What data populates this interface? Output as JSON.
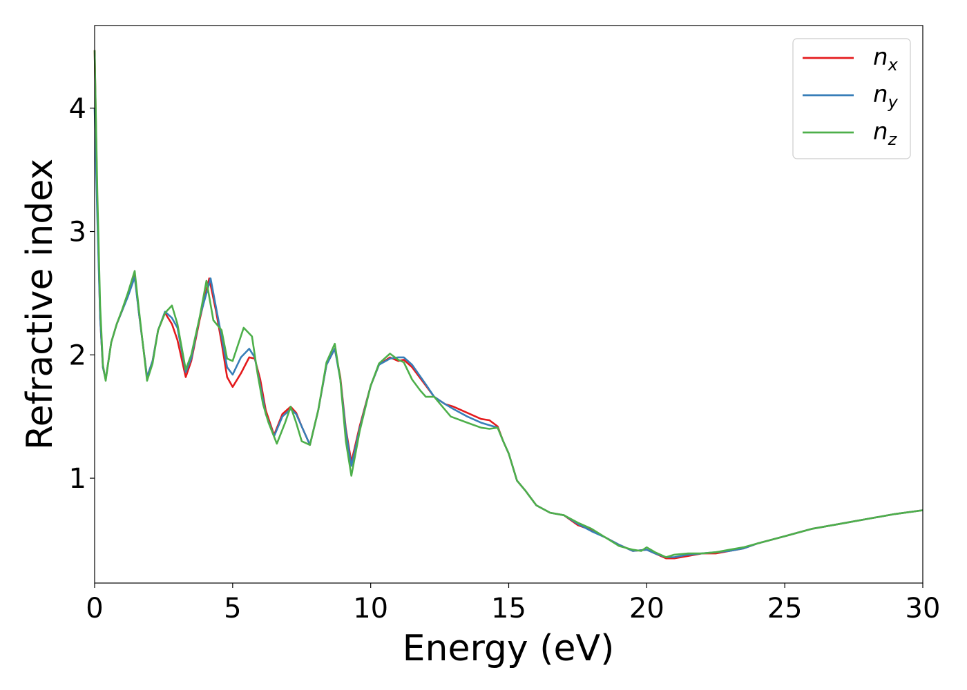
{
  "chart_data": {
    "type": "line",
    "xlabel": "Energy (eV)",
    "ylabel": "Refractive index",
    "xlim": [
      0,
      30
    ],
    "ylim": [
      0.15,
      4.67
    ],
    "xticks": [
      0,
      5,
      10,
      15,
      20,
      25,
      30
    ],
    "xtick_labels": [
      "0",
      "5",
      "10",
      "15",
      "20",
      "25",
      "30"
    ],
    "yticks": [
      1,
      2,
      3,
      4
    ],
    "ytick_labels": [
      "1",
      "2",
      "3",
      "4"
    ],
    "grid": false,
    "legend_position": "top-right",
    "series": [
      {
        "name": "n_x",
        "label_main": "n",
        "label_sub": "x",
        "color": "#e41a1c",
        "x": [
          0,
          0.1,
          0.2,
          0.3,
          0.4,
          0.6,
          0.8,
          1.0,
          1.2,
          1.45,
          1.6,
          1.9,
          2.1,
          2.3,
          2.55,
          2.8,
          3.0,
          3.3,
          3.5,
          3.8,
          4.15,
          4.4,
          4.6,
          4.8,
          5.0,
          5.3,
          5.6,
          5.8,
          6.0,
          6.2,
          6.5,
          6.8,
          7.1,
          7.3,
          7.5,
          7.8,
          8.1,
          8.4,
          8.7,
          8.9,
          9.1,
          9.3,
          9.6,
          10.0,
          10.3,
          10.7,
          11.0,
          11.2,
          11.5,
          12.0,
          12.3,
          12.7,
          13.0,
          13.5,
          14.0,
          14.3,
          14.6,
          14.8,
          15.0,
          15.3,
          15.6,
          16.0,
          16.5,
          17.0,
          17.5,
          18.0,
          18.5,
          19.0,
          19.5,
          20.0,
          20.3,
          20.7,
          21.0,
          21.5,
          22.0,
          22.5,
          23.0,
          23.5,
          24.0,
          25.0,
          26.0,
          27.0,
          28.0,
          29.0,
          30.0
        ],
        "y": [
          4.47,
          3.2,
          2.3,
          1.9,
          1.8,
          2.1,
          2.25,
          2.36,
          2.48,
          2.65,
          2.35,
          1.82,
          1.95,
          2.2,
          2.34,
          2.25,
          2.12,
          1.82,
          1.95,
          2.28,
          2.62,
          2.35,
          2.1,
          1.82,
          1.74,
          1.85,
          1.98,
          1.97,
          1.8,
          1.55,
          1.35,
          1.52,
          1.58,
          1.53,
          1.42,
          1.27,
          1.55,
          1.92,
          2.05,
          1.82,
          1.4,
          1.13,
          1.42,
          1.75,
          1.92,
          1.98,
          1.95,
          1.96,
          1.9,
          1.75,
          1.66,
          1.6,
          1.58,
          1.53,
          1.48,
          1.47,
          1.42,
          1.3,
          1.2,
          0.98,
          0.9,
          0.78,
          0.72,
          0.7,
          0.62,
          0.58,
          0.52,
          0.46,
          0.41,
          0.42,
          0.39,
          0.35,
          0.35,
          0.37,
          0.39,
          0.39,
          0.41,
          0.43,
          0.47,
          0.53,
          0.59,
          0.63,
          0.67,
          0.71,
          0.74
        ]
      },
      {
        "name": "n_y",
        "label_main": "n",
        "label_sub": "y",
        "color": "#377eb8",
        "x": [
          0,
          0.1,
          0.2,
          0.3,
          0.4,
          0.6,
          0.8,
          1.0,
          1.2,
          1.45,
          1.6,
          1.9,
          2.1,
          2.3,
          2.55,
          2.8,
          3.0,
          3.3,
          3.5,
          3.8,
          4.2,
          4.4,
          4.6,
          4.8,
          5.0,
          5.3,
          5.6,
          5.8,
          6.0,
          6.2,
          6.5,
          6.8,
          7.1,
          7.3,
          7.5,
          7.8,
          8.1,
          8.4,
          8.7,
          8.9,
          9.1,
          9.3,
          9.6,
          10.0,
          10.3,
          10.7,
          11.0,
          11.2,
          11.5,
          12.0,
          12.3,
          12.7,
          13.0,
          13.5,
          14.0,
          14.3,
          14.6,
          14.8,
          15.0,
          15.3,
          15.6,
          16.0,
          16.5,
          17.0,
          17.5,
          18.0,
          18.5,
          19.0,
          19.5,
          20.0,
          20.3,
          20.7,
          21.0,
          21.5,
          22.0,
          22.5,
          23.0,
          23.5,
          24.0,
          25.0,
          26.0,
          27.0,
          28.0,
          29.0,
          30.0
        ],
        "y": [
          4.0,
          3.1,
          2.3,
          1.9,
          1.8,
          2.1,
          2.25,
          2.36,
          2.47,
          2.63,
          2.35,
          1.82,
          1.95,
          2.2,
          2.35,
          2.3,
          2.22,
          1.86,
          1.97,
          2.3,
          2.62,
          2.38,
          2.15,
          1.9,
          1.84,
          1.98,
          2.05,
          1.98,
          1.75,
          1.52,
          1.34,
          1.5,
          1.56,
          1.52,
          1.42,
          1.27,
          1.55,
          1.92,
          2.05,
          1.8,
          1.38,
          1.1,
          1.4,
          1.75,
          1.92,
          1.97,
          1.98,
          1.98,
          1.92,
          1.76,
          1.66,
          1.6,
          1.56,
          1.5,
          1.45,
          1.43,
          1.41,
          1.3,
          1.2,
          0.98,
          0.9,
          0.78,
          0.72,
          0.7,
          0.63,
          0.57,
          0.52,
          0.46,
          0.41,
          0.42,
          0.39,
          0.36,
          0.36,
          0.38,
          0.39,
          0.4,
          0.41,
          0.43,
          0.47,
          0.53,
          0.59,
          0.63,
          0.67,
          0.71,
          0.74
        ]
      },
      {
        "name": "n_z",
        "label_main": "n",
        "label_sub": "z",
        "color": "#4daf4a",
        "x": [
          0,
          0.1,
          0.2,
          0.3,
          0.4,
          0.6,
          0.8,
          1.0,
          1.2,
          1.45,
          1.6,
          1.9,
          2.1,
          2.3,
          2.55,
          2.8,
          3.0,
          3.3,
          3.5,
          3.8,
          4.05,
          4.3,
          4.6,
          4.8,
          5.0,
          5.4,
          5.7,
          5.9,
          6.1,
          6.3,
          6.6,
          6.9,
          7.1,
          7.3,
          7.5,
          7.8,
          8.1,
          8.4,
          8.7,
          8.9,
          9.1,
          9.3,
          9.6,
          10.0,
          10.3,
          10.7,
          11.0,
          11.2,
          11.5,
          11.8,
          12.0,
          12.3,
          12.6,
          12.9,
          13.5,
          14.0,
          14.3,
          14.6,
          14.8,
          15.0,
          15.3,
          15.6,
          16.0,
          16.5,
          17.0,
          17.5,
          18.0,
          18.5,
          19.0,
          19.5,
          19.8,
          20.0,
          20.3,
          20.7,
          21.0,
          21.5,
          22.0,
          22.5,
          23.0,
          23.5,
          24.0,
          25.0,
          26.0,
          27.0,
          28.0,
          29.0,
          30.0
        ],
        "y": [
          4.47,
          3.3,
          2.4,
          1.92,
          1.79,
          2.1,
          2.25,
          2.37,
          2.5,
          2.68,
          2.38,
          1.79,
          1.93,
          2.2,
          2.34,
          2.4,
          2.25,
          1.88,
          2.0,
          2.3,
          2.6,
          2.28,
          2.2,
          1.97,
          1.95,
          2.22,
          2.15,
          1.85,
          1.6,
          1.45,
          1.28,
          1.45,
          1.58,
          1.45,
          1.3,
          1.27,
          1.55,
          1.94,
          2.09,
          1.8,
          1.3,
          1.02,
          1.38,
          1.75,
          1.93,
          2.01,
          1.96,
          1.94,
          1.8,
          1.71,
          1.66,
          1.66,
          1.58,
          1.5,
          1.45,
          1.41,
          1.4,
          1.41,
          1.3,
          1.2,
          0.98,
          0.9,
          0.78,
          0.72,
          0.7,
          0.64,
          0.59,
          0.52,
          0.45,
          0.42,
          0.41,
          0.44,
          0.4,
          0.36,
          0.38,
          0.39,
          0.39,
          0.4,
          0.42,
          0.44,
          0.47,
          0.53,
          0.59,
          0.63,
          0.67,
          0.71,
          0.74
        ]
      }
    ]
  }
}
